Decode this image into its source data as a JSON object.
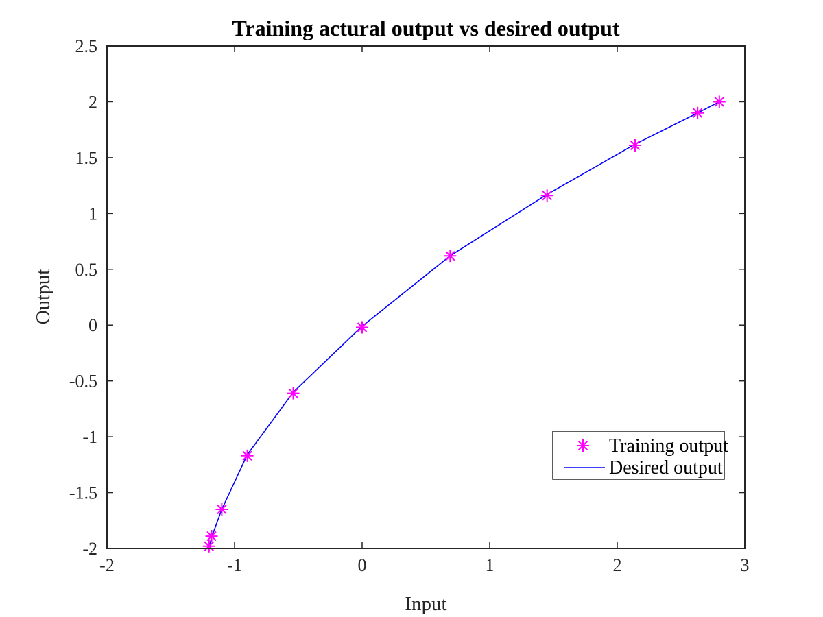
{
  "chart_data": {
    "type": "line",
    "title": "Training actural output vs desired output",
    "xlabel": "Input",
    "ylabel": "Output",
    "xlim": [
      -2,
      3
    ],
    "ylim": [
      -2,
      2.5
    ],
    "xticks": [
      "-2",
      "-1",
      "0",
      "1",
      "2",
      "3"
    ],
    "yticks": [
      "-2",
      "-1.5",
      "-1",
      "-0.5",
      "0",
      "0.5",
      "1",
      "1.5",
      "2",
      "2.5"
    ],
    "grid": false,
    "legend_position": "bottom-right",
    "series": [
      {
        "name": "Training output",
        "kind": "scatter",
        "marker": "asterisk",
        "color": "#ff00ff",
        "x": [
          -1.2,
          -1.18,
          -1.1,
          -0.9,
          -0.54,
          0.0,
          0.69,
          1.45,
          2.14,
          2.63,
          2.8
        ],
        "y": [
          -1.98,
          -1.89,
          -1.65,
          -1.17,
          -0.61,
          -0.02,
          0.62,
          1.16,
          1.61,
          1.9,
          2.0
        ]
      },
      {
        "name": "Desired output",
        "kind": "line",
        "color": "#0000ff",
        "x": [
          -1.2,
          -1.18,
          -1.1,
          -0.9,
          -0.54,
          0.0,
          0.69,
          1.45,
          2.14,
          2.63,
          2.8
        ],
        "y": [
          -1.99,
          -1.9,
          -1.65,
          -1.16,
          -0.6,
          -0.01,
          0.62,
          1.17,
          1.62,
          1.9,
          2.0
        ]
      }
    ]
  }
}
